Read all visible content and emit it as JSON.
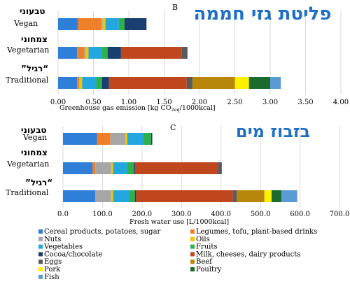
{
  "colors": {
    "cereal": "#2f7ed8",
    "legumes": "#f07f2a",
    "nuts": "#a6a6a6",
    "oils": "#f5c400",
    "vegetables": "#22a7e0",
    "fruits": "#2eb14a",
    "cocoa": "#1a3e6e",
    "milk": "#c0461e",
    "eggs": "#5a5a5a",
    "beef": "#b8860b",
    "pork": "#fff200",
    "poultry": "#1c6b2e",
    "fish": "#5b9bd5"
  },
  "legend": [
    {
      "key": "cereal",
      "label": "Cereal products, potatoes, sugar"
    },
    {
      "key": "legumes",
      "label": "Legumes, tofu, plant-based drinks"
    },
    {
      "key": "nuts",
      "label": "Nuts"
    },
    {
      "key": "oils",
      "label": "Oils"
    },
    {
      "key": "vegetables",
      "label": "Vegetables"
    },
    {
      "key": "fruits",
      "label": "Fruits"
    },
    {
      "key": "cocoa",
      "label": "Cocoa/chocolate"
    },
    {
      "key": "milk",
      "label": "Milk, cheeses, dairy products"
    },
    {
      "key": "eggs",
      "label": "Eggs"
    },
    {
      "key": "beef",
      "label": "Beef"
    },
    {
      "key": "pork",
      "label": "Pork"
    },
    {
      "key": "poultry",
      "label": "Poultry"
    },
    {
      "key": "fish",
      "label": "Fish"
    }
  ],
  "chart_data": [
    {
      "type": "bar",
      "orientation": "horizontal",
      "stacked": true,
      "panel_label": "B",
      "title": "פליטת גזי חממה",
      "xlabel": "Greenhouse gas emission [kg CO",
      "xlabel_sub": "2eq",
      "xlabel_end": "/1000kcal]",
      "xlim": [
        0,
        4.0
      ],
      "xticks": [
        "0.00",
        "0.50",
        "1.00",
        "1.50",
        "2.00",
        "2.50",
        "3.00",
        "3.50",
        "4.00"
      ],
      "categories": [
        {
          "en": "Vegan",
          "he": "טבעוני"
        },
        {
          "en": "Vegetarian",
          "he": "צמחוני"
        },
        {
          "en": "Traditional",
          "he": "”רגיל“"
        }
      ],
      "series": [
        {
          "key": "cereal",
          "values": [
            0.28,
            0.27,
            0.27
          ]
        },
        {
          "key": "legumes",
          "values": [
            0.33,
            0.1,
            0.03
          ]
        },
        {
          "key": "nuts",
          "values": [
            0.02,
            0.02,
            0.0
          ]
        },
        {
          "key": "oils",
          "values": [
            0.04,
            0.04,
            0.04
          ]
        },
        {
          "key": "vegetables",
          "values": [
            0.19,
            0.19,
            0.2
          ]
        },
        {
          "key": "fruits",
          "values": [
            0.08,
            0.08,
            0.08
          ]
        },
        {
          "key": "cocoa",
          "values": [
            0.31,
            0.19,
            0.1
          ]
        },
        {
          "key": "milk",
          "values": [
            0.0,
            0.86,
            1.1
          ]
        },
        {
          "key": "eggs",
          "values": [
            0.0,
            0.08,
            0.08
          ]
        },
        {
          "key": "beef",
          "values": [
            0.0,
            0.0,
            0.6
          ]
        },
        {
          "key": "pork",
          "values": [
            0.0,
            0.0,
            0.2
          ]
        },
        {
          "key": "poultry",
          "values": [
            0.0,
            0.0,
            0.3
          ]
        },
        {
          "key": "fish",
          "values": [
            0.0,
            0.0,
            0.15
          ]
        }
      ]
    },
    {
      "type": "bar",
      "orientation": "horizontal",
      "stacked": true,
      "panel_label": "C",
      "title": "בזבוז מים",
      "xlabel": "Fresh water use [L/1000kcal]",
      "xlim": [
        0,
        700
      ],
      "xticks": [
        "0.0",
        "100.0",
        "200.0",
        "300.0",
        "400.0",
        "500.0",
        "600.0",
        "700.0"
      ],
      "categories": [
        {
          "en": "Vegan",
          "he": "טבעוני"
        },
        {
          "en": "Vegetarian",
          "he": "צמחוני"
        },
        {
          "en": "Traditional",
          "he": "”רגיל“"
        }
      ],
      "series": [
        {
          "key": "cereal",
          "values": [
            86,
            75,
            82
          ]
        },
        {
          "key": "legumes",
          "values": [
            34,
            7,
            0
          ]
        },
        {
          "key": "nuts",
          "values": [
            38,
            40,
            40
          ]
        },
        {
          "key": "oils",
          "values": [
            5,
            5,
            5
          ]
        },
        {
          "key": "vegetables",
          "values": [
            40,
            35,
            40
          ]
        },
        {
          "key": "fruits",
          "values": [
            20,
            17,
            15
          ]
        },
        {
          "key": "cocoa",
          "values": [
            3,
            3,
            3
          ]
        },
        {
          "key": "milk",
          "values": [
            0,
            210,
            245
          ]
        },
        {
          "key": "eggs",
          "values": [
            0,
            10,
            10
          ]
        },
        {
          "key": "beef",
          "values": [
            0,
            0,
            70
          ]
        },
        {
          "key": "pork",
          "values": [
            0,
            0,
            18
          ]
        },
        {
          "key": "poultry",
          "values": [
            0,
            0,
            25
          ]
        },
        {
          "key": "fish",
          "values": [
            0,
            0,
            40
          ]
        }
      ]
    }
  ]
}
